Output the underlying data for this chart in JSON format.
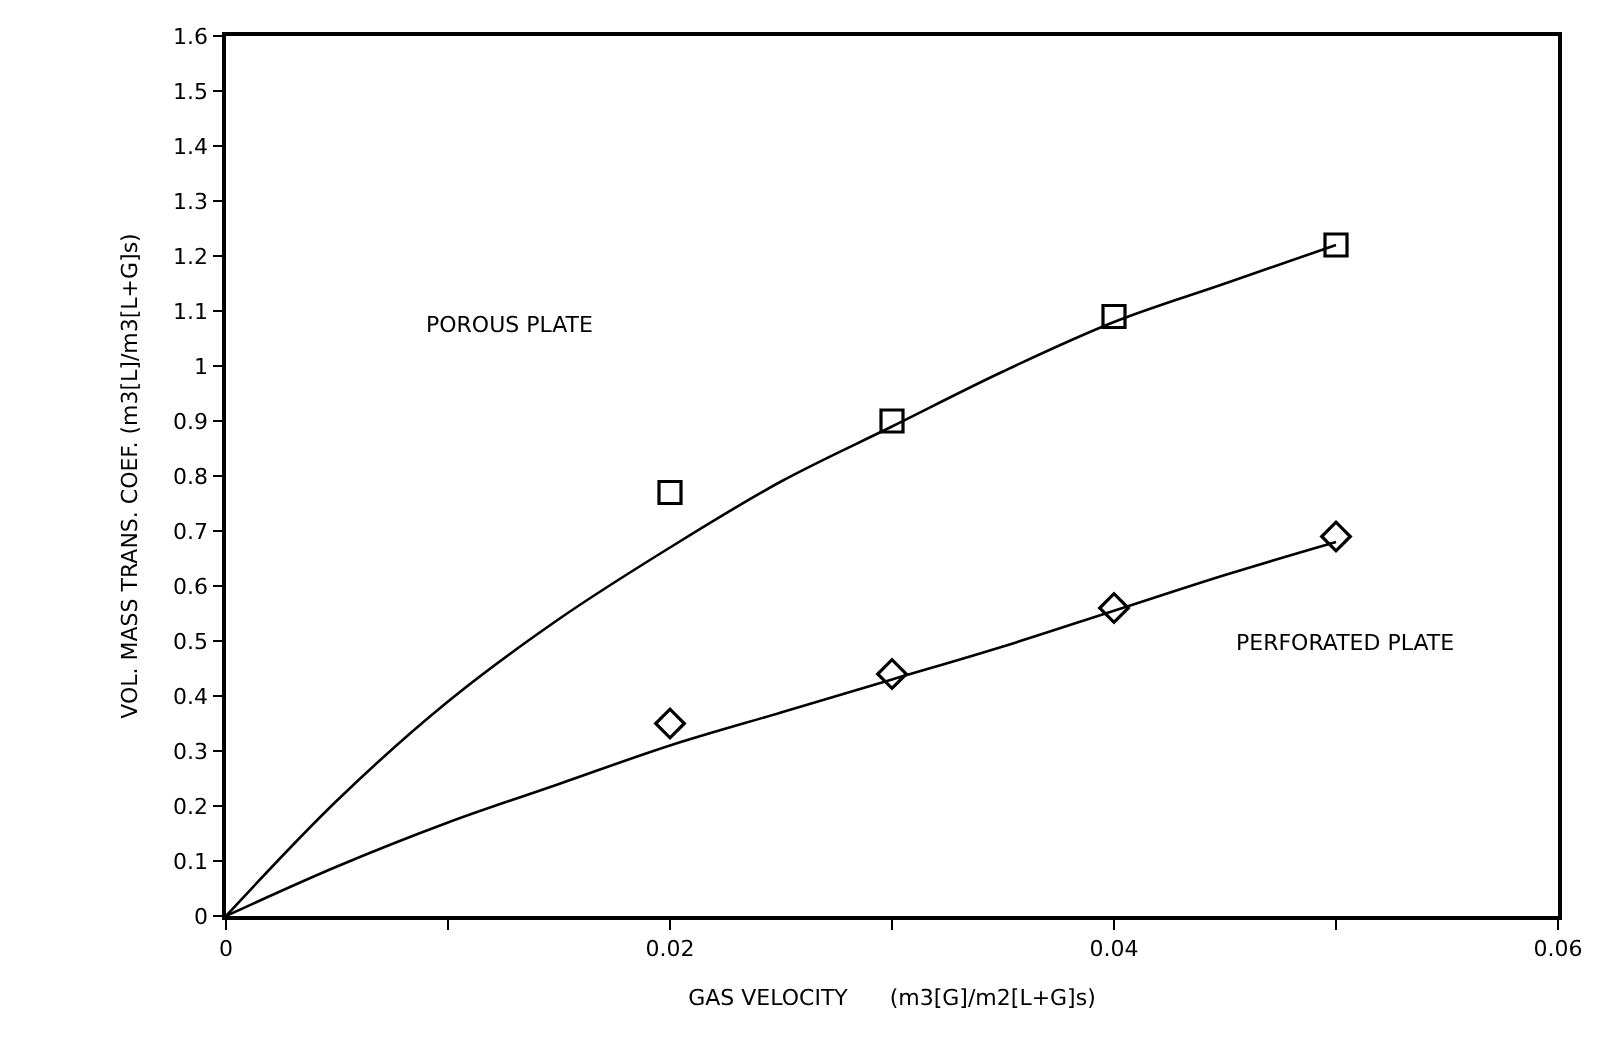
{
  "chart_data": {
    "type": "scatter",
    "xlabel": "GAS VELOCITY      (m3[G]/m2[L+G]s)",
    "ylabel": "VOL. MASS TRANS. COEF. (m3[L]/m3[L+G]s)",
    "xlim": [
      0,
      0.06
    ],
    "ylim": [
      0,
      1.6
    ],
    "xticks": [
      0,
      {
        "value": 0.01,
        "label": null
      },
      0.02,
      {
        "value": 0.03,
        "label": null
      },
      0.04,
      {
        "value": 0.05,
        "label": null
      },
      0.06
    ],
    "yticks": [
      0,
      0.1,
      0.2,
      0.3,
      0.4,
      0.5,
      0.6,
      0.7,
      0.8,
      0.9,
      1,
      1.1,
      1.2,
      1.3,
      1.4,
      1.5,
      1.6
    ],
    "legend": false,
    "series": [
      {
        "marker": "square",
        "color": "#000000",
        "x": [
          0.02,
          0.03,
          0.04,
          0.05
        ],
        "values": [
          0.77,
          0.9,
          1.09,
          1.22
        ]
      },
      {
        "marker": "diamond",
        "color": "#000000",
        "x": [
          0.02,
          0.03,
          0.04,
          0.05
        ],
        "values": [
          0.35,
          0.44,
          0.56,
          0.69
        ]
      },
      {
        "type": "line",
        "marker": "none",
        "color": "#000000",
        "x": [
          0,
          0.005,
          0.01,
          0.015,
          0.02,
          0.025,
          0.03,
          0.035,
          0.04,
          0.045,
          0.05
        ],
        "values": [
          0,
          0.21,
          0.39,
          0.54,
          0.67,
          0.79,
          0.89,
          0.99,
          1.08,
          1.15,
          1.22
        ]
      },
      {
        "type": "line",
        "marker": "none",
        "color": "#000000",
        "x": [
          0,
          0.005,
          0.01,
          0.015,
          0.02,
          0.025,
          0.03,
          0.035,
          0.04,
          0.045,
          0.05
        ],
        "values": [
          0,
          0.09,
          0.17,
          0.24,
          0.31,
          0.37,
          0.43,
          0.49,
          0.555,
          0.62,
          0.68
        ]
      }
    ],
    "annotations": [
      "POROUS PLATE",
      "PERFORATED PLATE"
    ]
  }
}
